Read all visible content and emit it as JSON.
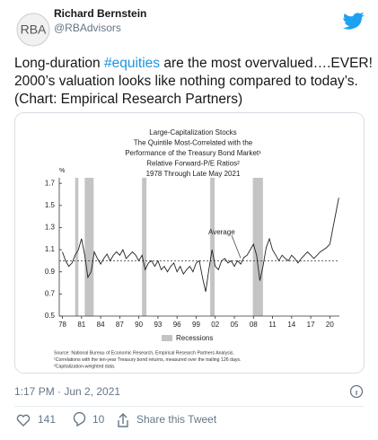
{
  "author": {
    "avatar": "RBA",
    "name": "Richard Bernstein",
    "handle": "@RBAdvisors"
  },
  "tweet": {
    "line1": [
      "Long-duration ",
      "#equities",
      " are the most overvalued….EVER!"
    ],
    "line2": "2000’s valuation looks like nothing compared to today’s.",
    "line3": "(Chart: Empirical Research Partners)"
  },
  "chart_data": {
    "type": "line",
    "title": [
      "Large-Capitalization Stocks",
      "The Quintile Most-Correlated with the",
      "Performance of the Treasury Bond Market¹",
      "Relative Forward-P/E Ratios²",
      "1978 Through Late May 2021"
    ],
    "y_unit": "%",
    "x": [
      1978,
      1978.5,
      1979,
      1979.5,
      1980,
      1980.5,
      1981,
      1981.5,
      1982,
      1982.5,
      1983,
      1983.5,
      1984,
      1984.5,
      1985,
      1985.5,
      1986,
      1986.5,
      1987,
      1987.5,
      1988,
      1988.5,
      1989,
      1989.5,
      1990,
      1990.5,
      1991,
      1991.5,
      1992,
      1992.5,
      1993,
      1993.5,
      1994,
      1994.5,
      1995,
      1995.5,
      1996,
      1996.5,
      1997,
      1997.5,
      1998,
      1998.5,
      1999,
      1999.5,
      2000,
      2000.5,
      2001,
      2001.5,
      2002,
      2002.5,
      2003,
      2003.5,
      2004,
      2004.5,
      2005,
      2005.5,
      2006,
      2006.5,
      2007,
      2007.5,
      2008,
      2008.5,
      2009,
      2009.5,
      2010,
      2010.5,
      2011,
      2011.5,
      2012,
      2012.5,
      2013,
      2013.5,
      2014,
      2014.5,
      2015,
      2015.5,
      2016,
      2016.5,
      2017,
      2017.5,
      2018,
      2018.5,
      2019,
      2019.5,
      2020,
      2020.5,
      2021,
      2021.4
    ],
    "series": [
      {
        "color": "#222222",
        "values": [
          1.08,
          1.0,
          0.95,
          0.98,
          1.05,
          1.1,
          1.2,
          1.05,
          0.85,
          0.9,
          1.08,
          1.02,
          0.97,
          1.02,
          1.06,
          1.0,
          1.05,
          1.08,
          1.05,
          1.1,
          1.02,
          1.05,
          1.08,
          1.05,
          1.0,
          1.05,
          0.92,
          0.98,
          1.0,
          0.95,
          1.0,
          0.92,
          0.95,
          0.9,
          0.95,
          0.98,
          0.9,
          0.95,
          0.88,
          0.92,
          0.95,
          0.9,
          0.98,
          1.0,
          0.85,
          0.72,
          0.92,
          1.1,
          0.95,
          0.92,
          1.0,
          1.02,
          0.98,
          1.0,
          0.95,
          1.0,
          0.97,
          1.03,
          1.05,
          1.1,
          1.15,
          1.05,
          0.82,
          0.95,
          1.12,
          1.2,
          1.1,
          1.05,
          1.0,
          1.05,
          1.02,
          1.0,
          1.05,
          1.02,
          0.98,
          1.02,
          1.05,
          1.08,
          1.05,
          1.02,
          1.05,
          1.08,
          1.1,
          1.12,
          1.15,
          1.3,
          1.45,
          1.57
        ]
      }
    ],
    "recessions": {
      "name": "Recessions",
      "color": "#c4c4c4",
      "spans": [
        [
          1980.0,
          1980.5
        ],
        [
          1981.5,
          1982.9
        ],
        [
          1990.5,
          1991.2
        ],
        [
          2001.2,
          2001.9
        ],
        [
          2007.9,
          2009.5
        ]
      ]
    },
    "average": {
      "label": "Average",
      "value": 1.0
    },
    "xlim": [
      1977.5,
      2021.5
    ],
    "xticks": [
      {
        "value": 1978,
        "label": "78"
      },
      {
        "value": 1981,
        "label": "81"
      },
      {
        "value": 1984,
        "label": "84"
      },
      {
        "value": 1987,
        "label": "87"
      },
      {
        "value": 1990,
        "label": "90"
      },
      {
        "value": 1993,
        "label": "93"
      },
      {
        "value": 1996,
        "label": "96"
      },
      {
        "value": 1999,
        "label": "99"
      },
      {
        "value": 2002,
        "label": "02"
      },
      {
        "value": 2005,
        "label": "05"
      },
      {
        "value": 2008,
        "label": "08"
      },
      {
        "value": 2011,
        "label": "11"
      },
      {
        "value": 2014,
        "label": "14"
      },
      {
        "value": 2017,
        "label": "17"
      },
      {
        "value": 2020,
        "label": "20"
      }
    ],
    "ylim": [
      0.5,
      1.75
    ],
    "yticks": [
      0.5,
      0.7,
      0.9,
      1.1,
      1.3,
      1.5,
      1.7
    ],
    "source": [
      "Source: National Bureau of Economic Research, Empirical Research Partners Analysis.",
      "¹Correlations with the ten-year Treasury bond returns, measured over the trailing 126 days.",
      "²Capitalization-weighted data."
    ]
  },
  "footer": {
    "timestamp": "1:17 PM · Jun 2, 2021",
    "likes": "141",
    "replies": "10",
    "share": "Share this Tweet"
  }
}
